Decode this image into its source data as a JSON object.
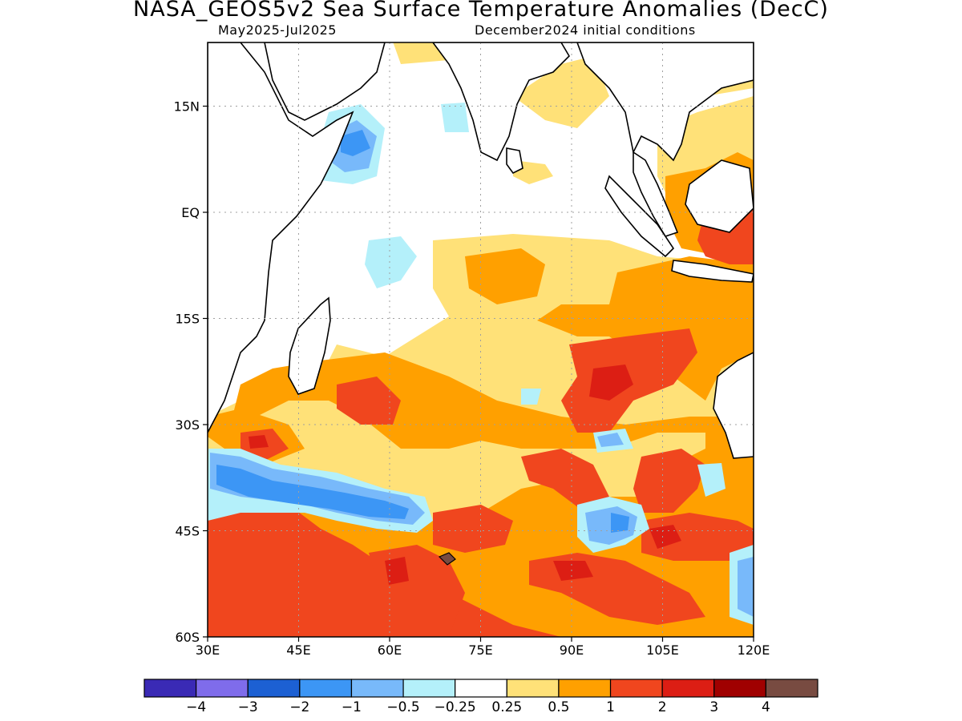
{
  "title": "NASA_GEOS5v2 Sea Surface Temperature Anomalies (DecC)",
  "subtitle_left": "May2025-Jul2025",
  "subtitle_right": "December2024 initial conditions",
  "lat_ticks": [
    {
      "label": "15N",
      "lat": 15
    },
    {
      "label": "EQ",
      "lat": 0
    },
    {
      "label": "15S",
      "lat": -15
    },
    {
      "label": "30S",
      "lat": -30
    },
    {
      "label": "45S",
      "lat": -45
    },
    {
      "label": "60S",
      "lat": -60
    }
  ],
  "lon_ticks": [
    {
      "label": "30E",
      "lon": 30
    },
    {
      "label": "45E",
      "lon": 45
    },
    {
      "label": "60E",
      "lon": 60
    },
    {
      "label": "75E",
      "lon": 75
    },
    {
      "label": "90E",
      "lon": 90
    },
    {
      "label": "105E",
      "lon": 105
    },
    {
      "label": "120E",
      "lon": 120
    }
  ],
  "extent": {
    "lon_min": 30,
    "lon_max": 120,
    "lat_min": -60,
    "lat_max": 24
  },
  "colorbar": {
    "colors": [
      "#3a2ab5",
      "#7f6ceb",
      "#1c60d3",
      "#3c96f5",
      "#78b9fa",
      "#b4f0fa",
      "#ffffff",
      "#ffe178",
      "#ffa000",
      "#f0461e",
      "#dc1e14",
      "#a00000",
      "#784b41"
    ],
    "labels": [
      "-4",
      "-3",
      "-2",
      "-1",
      "-0.5",
      "-0.25",
      "0.25",
      "0.5",
      "1",
      "2",
      "3",
      "4"
    ]
  },
  "colors": {
    "land": "#ffffff",
    "coast": "#000000",
    "grid": "#a0a0a0"
  }
}
